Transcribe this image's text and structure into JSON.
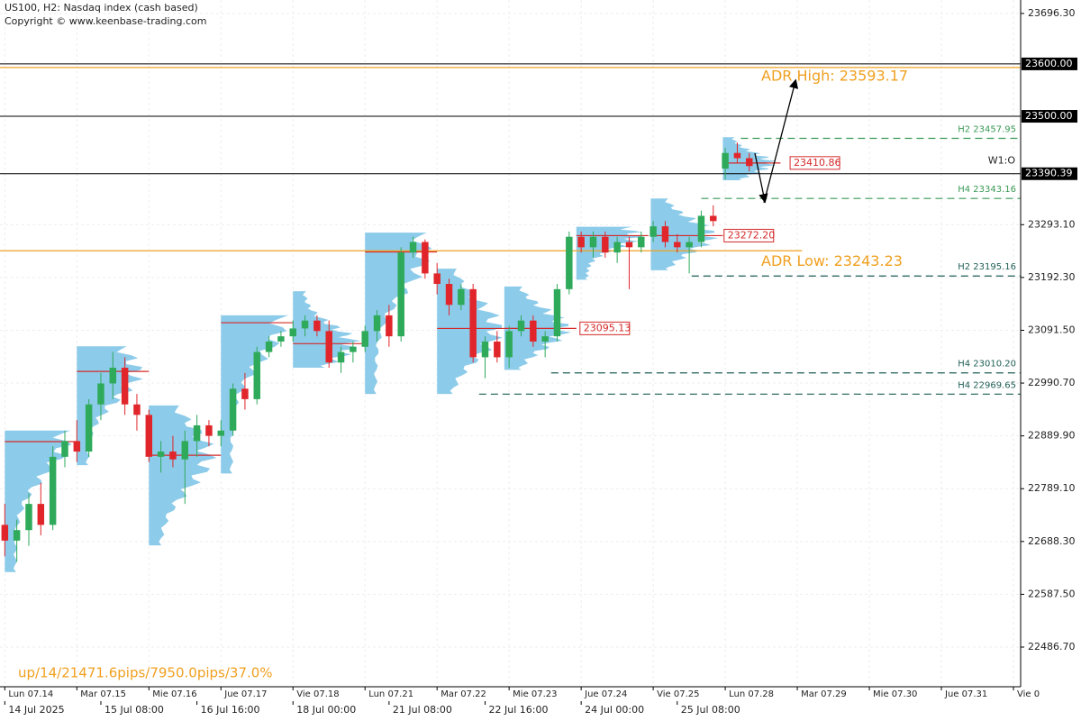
{
  "chart_data": {
    "type": "candlestick",
    "title": "US100, H2:  Nasdaq index (cash based)",
    "subtitle": "Copyright © www.keenbase-trading.com",
    "annotation": "up/14/21471.6pips/7950.0pips/37.0%",
    "up_color": "#2eaa5a",
    "down_color": "#e0262b",
    "profile_color": "#8ccbe9",
    "poc_color": "#d42a2a",
    "open": [
      22720,
      22690,
      22710,
      22760,
      22720,
      22850,
      22880,
      22860,
      22950,
      22990,
      23020,
      22950,
      22930,
      22850,
      22860,
      22845,
      22880,
      22910,
      22890,
      22900,
      22980,
      22960,
      23050,
      23070,
      23080,
      23095,
      23110,
      23090,
      23030,
      23050,
      23060,
      23090,
      23120,
      23080,
      23240,
      23260,
      23200,
      23180,
      23140,
      23170,
      23040,
      23070,
      23040,
      23090,
      23110,
      23070,
      23080,
      23170,
      23270,
      23250,
      23270,
      23240,
      23260,
      23250,
      23270,
      23290,
      23260,
      23250,
      23260,
      23310,
      23400,
      23430,
      23420
    ],
    "high": [
      22760,
      22730,
      22780,
      22800,
      22870,
      22900,
      22920,
      22960,
      23010,
      23050,
      23040,
      22970,
      22940,
      22880,
      22890,
      22900,
      22930,
      22920,
      22920,
      22990,
      23010,
      23060,
      23080,
      23090,
      23110,
      23120,
      23120,
      23110,
      23060,
      23070,
      23100,
      23130,
      23140,
      23250,
      23270,
      23265,
      23220,
      23190,
      23180,
      23180,
      23080,
      23090,
      23100,
      23120,
      23120,
      23090,
      23180,
      23280,
      23280,
      23280,
      23280,
      23270,
      23270,
      23280,
      23300,
      23300,
      23275,
      23270,
      23320,
      23330,
      23440,
      23450,
      23430
    ],
    "low": [
      22660,
      22650,
      22680,
      22700,
      22710,
      22830,
      22840,
      22850,
      22920,
      22960,
      22930,
      22900,
      22840,
      22820,
      22830,
      22760,
      22850,
      22870,
      22870,
      22890,
      22940,
      22950,
      23040,
      23060,
      23070,
      23080,
      23080,
      23020,
      23010,
      23030,
      23050,
      23070,
      23060,
      23070,
      23230,
      23190,
      23160,
      23120,
      23130,
      23030,
      23000,
      23030,
      23020,
      23080,
      23060,
      23040,
      23070,
      23160,
      23240,
      23230,
      23230,
      23220,
      23170,
      23240,
      23260,
      23250,
      23240,
      23200,
      23250,
      23290,
      23380,
      23410,
      23395
    ],
    "close": [
      22690,
      22710,
      22760,
      22720,
      22850,
      22880,
      22860,
      22950,
      22990,
      23020,
      22950,
      22930,
      22850,
      22860,
      22845,
      22880,
      22910,
      22890,
      22900,
      22980,
      22960,
      23050,
      23070,
      23080,
      23095,
      23110,
      23090,
      23030,
      23050,
      23060,
      23090,
      23120,
      23080,
      23240,
      23260,
      23200,
      23180,
      23140,
      23170,
      23040,
      23070,
      23040,
      23090,
      23110,
      23070,
      23080,
      23170,
      23270,
      23250,
      23270,
      23240,
      23260,
      23250,
      23270,
      23290,
      23260,
      23250,
      23260,
      23310,
      23300,
      23430,
      23420,
      23405
    ],
    "profiles": [
      {
        "start": 0,
        "end": 6,
        "low": 22630,
        "high": 22900,
        "poc": 22879
      },
      {
        "start": 6,
        "end": 12,
        "low": 22834,
        "high": 23061,
        "poc": 23013
      },
      {
        "start": 12,
        "end": 18,
        "low": 22681,
        "high": 22948,
        "poc": 22853
      },
      {
        "start": 18,
        "end": 24,
        "low": 22818,
        "high": 23120,
        "poc": 23106
      },
      {
        "start": 24,
        "end": 30,
        "low": 23020,
        "high": 23166,
        "poc": 23066
      },
      {
        "start": 30,
        "end": 36,
        "low": 22970,
        "high": 23278,
        "poc": 23241
      },
      {
        "start": 36,
        "end": 42,
        "low": 22970,
        "high": 23209,
        "poc": 23095
      },
      {
        "start": 41.6,
        "end": 47.6,
        "low": 23016,
        "high": 23175,
        "poc": 23095.13
      },
      {
        "start": 47.6,
        "end": 53.6,
        "low": 23188,
        "high": 23289,
        "poc": 23272.2
      },
      {
        "start": 53.8,
        "end": 59.8,
        "low": 23206,
        "high": 23343,
        "poc": 23272.2
      },
      {
        "start": 59.8,
        "end": 64.6,
        "low": 23378,
        "high": 23460,
        "poc": 23410.86
      }
    ],
    "xlim": [
      -0.4,
      84.6
    ],
    "xticks": [
      {
        "value": 0,
        "label": "Lun 07.14"
      },
      {
        "value": 6,
        "label": "Mar 07.15"
      },
      {
        "value": 12,
        "label": "Mie 07.16"
      },
      {
        "value": 18,
        "label": "Jue 07.17"
      },
      {
        "value": 24,
        "label": "Vie 07.18"
      },
      {
        "value": 30,
        "label": "Lun 07.21"
      },
      {
        "value": 36,
        "label": "Mar 07.22"
      },
      {
        "value": 42,
        "label": "Mie 07.23"
      },
      {
        "value": 48,
        "label": "Jue 07.24"
      },
      {
        "value": 54,
        "label": "Vie 07.25"
      },
      {
        "value": 60,
        "label": "Lun 07.28"
      },
      {
        "value": 66,
        "label": "Mar 07.29"
      },
      {
        "value": 72,
        "label": "Mie 07.30"
      },
      {
        "value": 78,
        "label": "Jue 07.31"
      },
      {
        "value": 84,
        "label": "Vie 0"
      }
    ],
    "xticks_secondary": [
      {
        "value": 0,
        "label": "14 Jul 2025"
      },
      {
        "value": 8,
        "label": "15 Jul 08:00"
      },
      {
        "value": 16,
        "label": "16 Jul 16:00"
      },
      {
        "value": 24,
        "label": "18 Jul 00:00"
      },
      {
        "value": 32,
        "label": "21 Jul 08:00"
      },
      {
        "value": 40,
        "label": "22 Jul 16:00"
      },
      {
        "value": 48,
        "label": "24 Jul 00:00"
      },
      {
        "value": 56,
        "label": "25 Jul 08:00"
      }
    ],
    "ylim": [
      22411,
      23722
    ],
    "yticks": [
      {
        "value": 23696.3,
        "label": "23696.30"
      },
      {
        "value": 23293.1,
        "label": "23293.10"
      },
      {
        "value": 23192.3,
        "label": "23192.30"
      },
      {
        "value": 23091.5,
        "label": "23091.50"
      },
      {
        "value": 22990.7,
        "label": "22990.70"
      },
      {
        "value": 22889.9,
        "label": "22889.90"
      },
      {
        "value": 22789.1,
        "label": "22789.10"
      },
      {
        "value": 22688.3,
        "label": "22688.30"
      },
      {
        "value": 22587.5,
        "label": "22587.50"
      },
      {
        "value": 22486.7,
        "label": "22486.70"
      }
    ],
    "grid": true,
    "price_lines": [
      {
        "value": 23600,
        "label": "23600.00"
      },
      {
        "value": 23500,
        "label": "23500.00"
      },
      {
        "value": 23390.39,
        "label": "23390.39",
        "tag": "W1:O"
      }
    ],
    "adr_color": "#f0a020",
    "adr": [
      {
        "value": 23593.17,
        "label": "ADR High: 23593.17",
        "to": 84.6
      },
      {
        "value": 23243.23,
        "label": "ADR Low: 23243.23",
        "to": 66.4
      }
    ],
    "pivots": [
      {
        "value": 23457.95,
        "label": "H2 23457.95",
        "from": 61.3,
        "color": "#3a9a55"
      },
      {
        "value": 23343.16,
        "label": "H4 23343.16",
        "from": 58,
        "color": "#3a9a55"
      },
      {
        "value": 23195.16,
        "label": "H2 23195.16",
        "from": 57.2,
        "color": "#1f5e55"
      },
      {
        "value": 23010.2,
        "label": "H4 23010.20",
        "from": 45.5,
        "color": "#1f5e55"
      },
      {
        "value": 22969.65,
        "label": "H4 22969.65",
        "from": 39.5,
        "color": "#1f5e55"
      }
    ],
    "poc_labels": [
      {
        "value": 23410.86,
        "label": "23410.86",
        "at": 65.4
      },
      {
        "value": 23272.2,
        "label": "23272.20",
        "at": 59.9
      },
      {
        "value": 23095.13,
        "label": "23095.13",
        "at": 47.9
      }
    ]
  }
}
